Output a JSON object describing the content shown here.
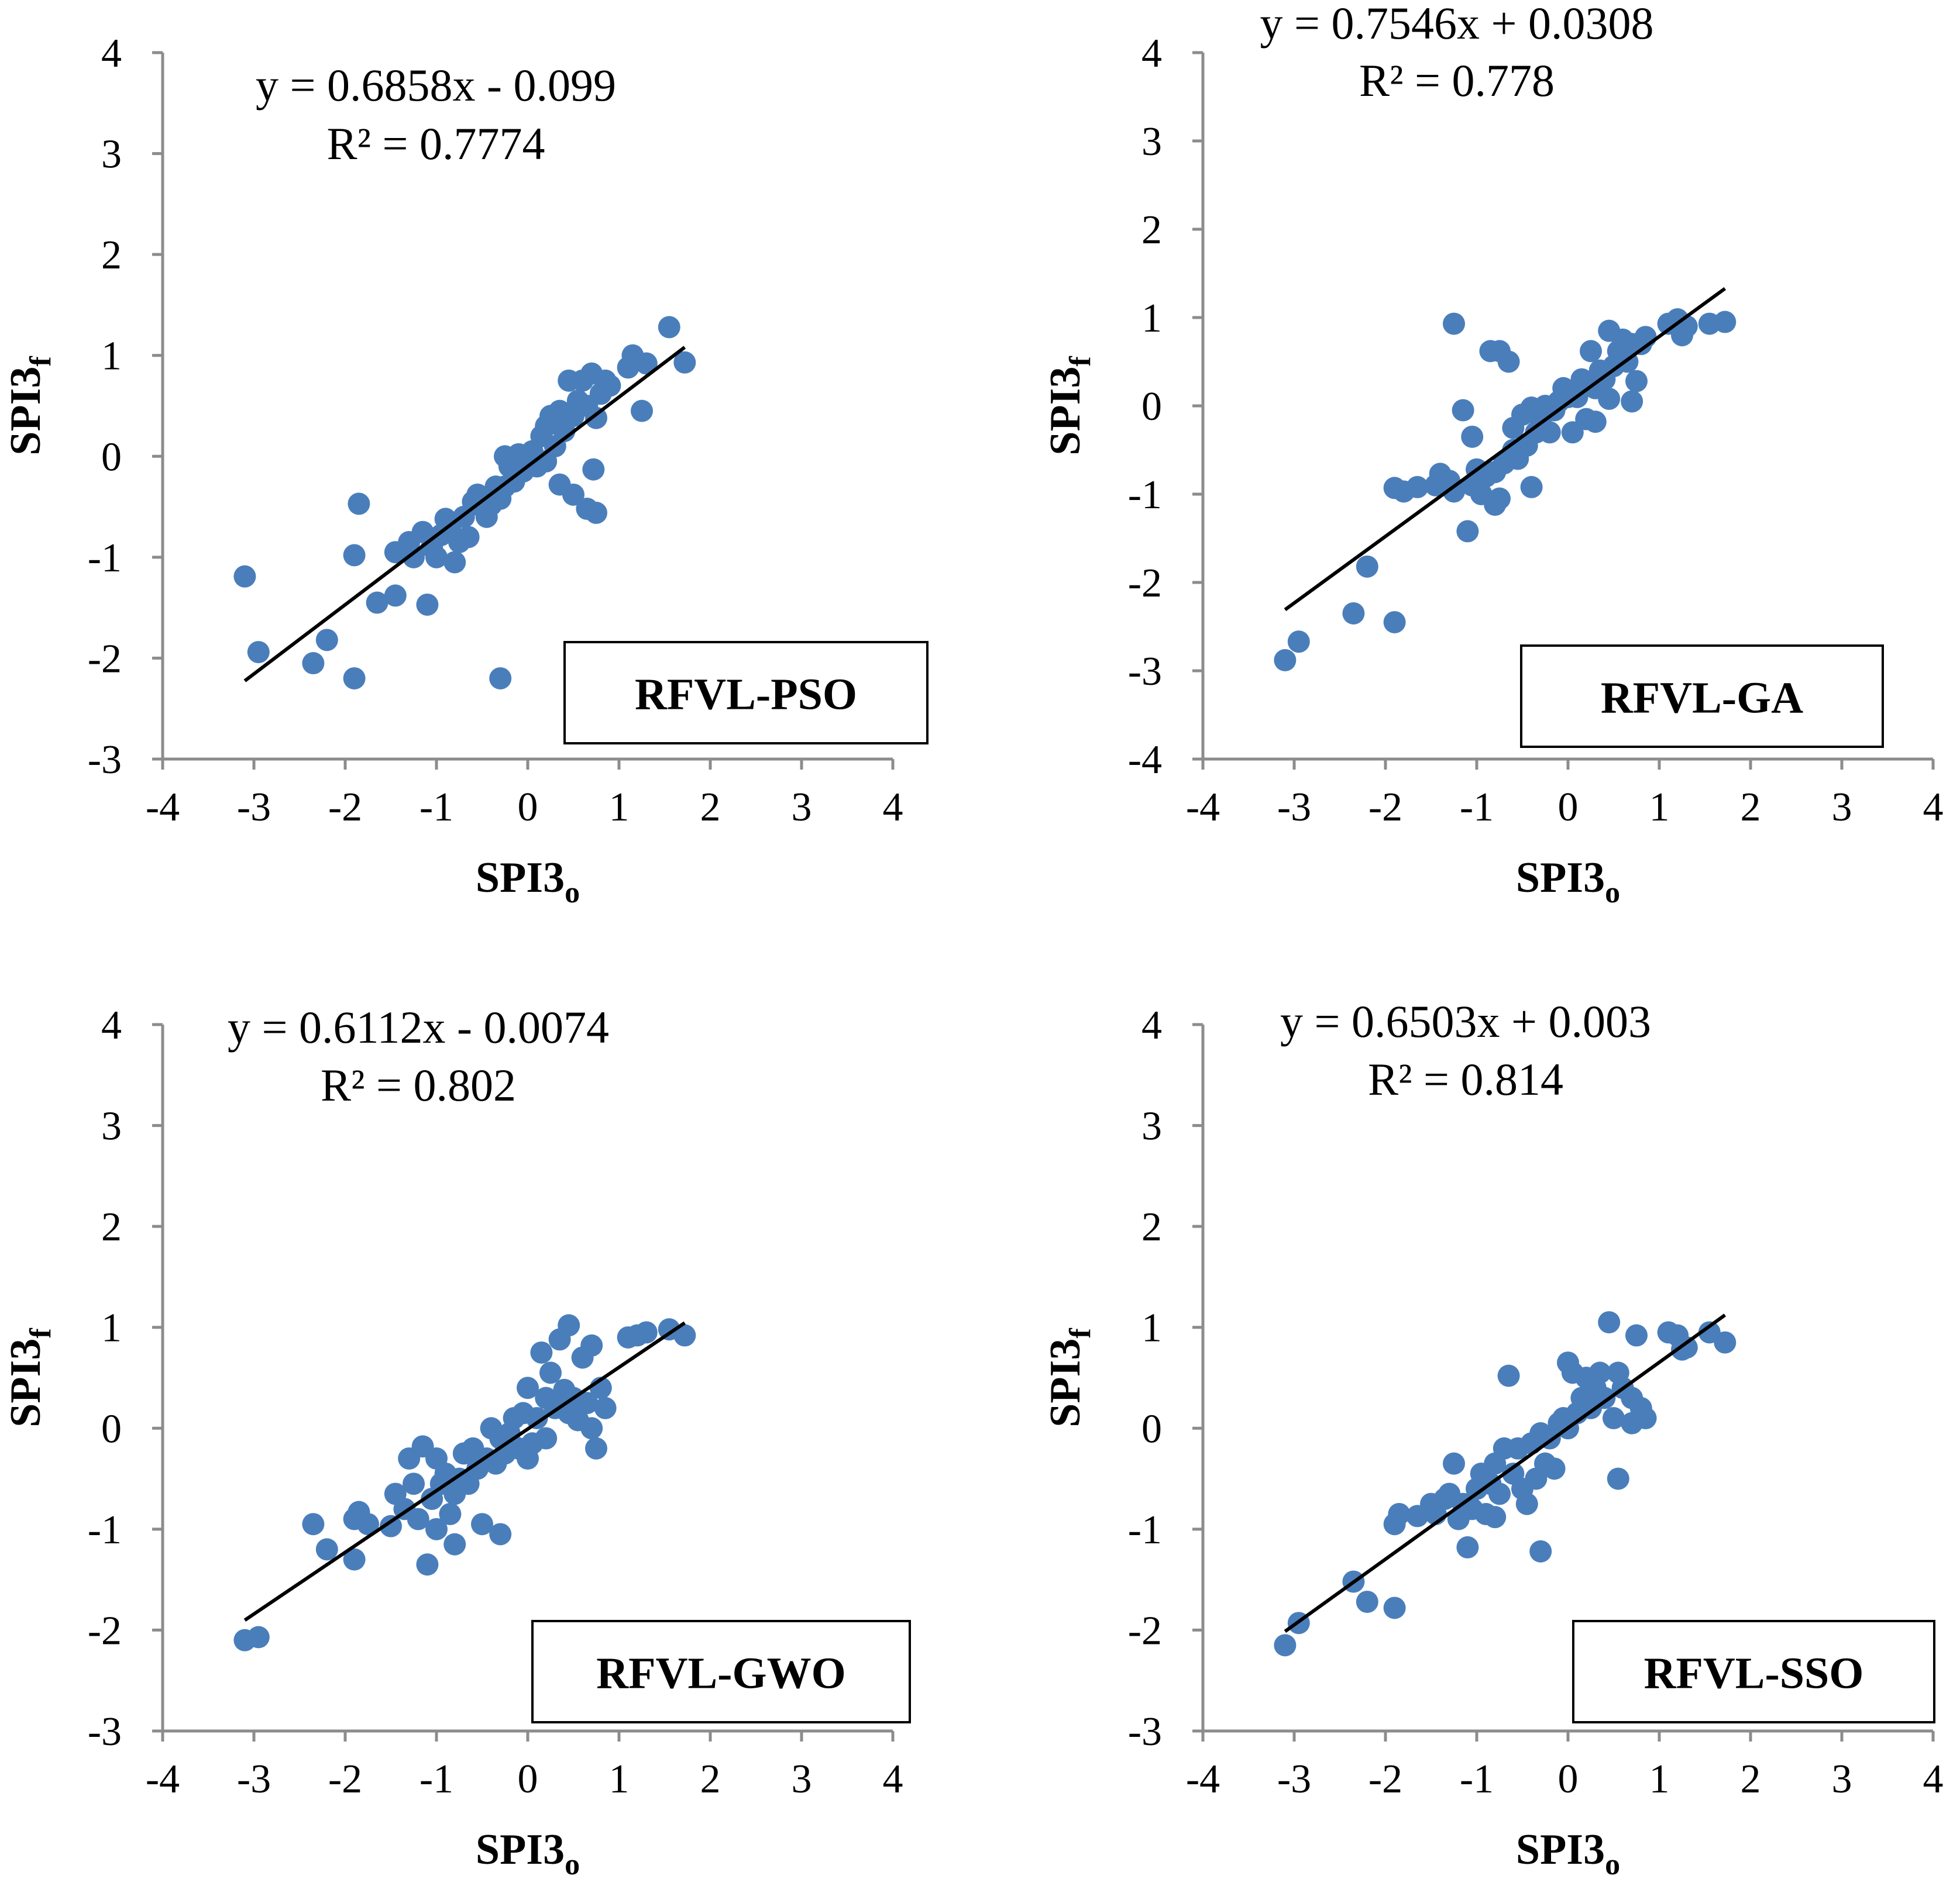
{
  "chart_data": [
    {
      "type": "scatter",
      "model_label": "RFVL-PSO",
      "equation": "y = 0.6858x - 0.099",
      "r2": "R² = 0.7774",
      "xlabel": {
        "base": "SPI3",
        "sub": "o"
      },
      "ylabel": {
        "base": "SPI3",
        "sub": "f"
      },
      "xlim": [
        -4,
        4
      ],
      "ylim": [
        -3,
        4
      ],
      "xticks": [
        -4,
        -3,
        -2,
        -1,
        0,
        1,
        2,
        3,
        4
      ],
      "yticks": [
        -3,
        -2,
        -1,
        0,
        1,
        2,
        3,
        4
      ],
      "trend": {
        "slope": 0.6858,
        "intercept": -0.099,
        "x": [
          -3.1,
          1.72
        ]
      },
      "marker_color": "#4a7ebb",
      "points": [
        [
          -3.1,
          -1.19
        ],
        [
          -2.95,
          -1.94
        ],
        [
          -2.35,
          -2.05
        ],
        [
          -2.2,
          -1.82
        ],
        [
          -1.9,
          -2.2
        ],
        [
          -1.9,
          -0.98
        ],
        [
          -1.85,
          -0.47
        ],
        [
          -1.65,
          -1.45
        ],
        [
          -1.45,
          -1.38
        ],
        [
          -1.45,
          -0.95
        ],
        [
          -1.3,
          -0.85
        ],
        [
          -1.25,
          -1.0
        ],
        [
          -1.15,
          -0.75
        ],
        [
          -1.1,
          -1.47
        ],
        [
          -1.05,
          -0.9
        ],
        [
          -1.0,
          -1.0
        ],
        [
          -0.95,
          -0.78
        ],
        [
          -0.9,
          -0.62
        ],
        [
          -0.85,
          -0.7
        ],
        [
          -0.8,
          -1.05
        ],
        [
          -0.75,
          -0.85
        ],
        [
          -0.7,
          -0.6
        ],
        [
          -0.65,
          -0.8
        ],
        [
          -0.6,
          -0.45
        ],
        [
          -0.55,
          -0.38
        ],
        [
          -0.5,
          -0.5
        ],
        [
          -0.45,
          -0.6
        ],
        [
          -0.4,
          -0.48
        ],
        [
          -0.35,
          -0.3
        ],
        [
          -0.3,
          -0.42
        ],
        [
          -0.3,
          -2.2
        ],
        [
          -0.25,
          -0.3
        ],
        [
          -0.25,
          0.0
        ],
        [
          -0.2,
          -0.1
        ],
        [
          -0.15,
          -0.25
        ],
        [
          -0.1,
          0.02
        ],
        [
          -0.05,
          -0.15
        ],
        [
          0.0,
          -0.05
        ],
        [
          0.05,
          0.05
        ],
        [
          0.1,
          -0.1
        ],
        [
          0.15,
          0.2
        ],
        [
          0.2,
          0.3
        ],
        [
          0.2,
          -0.05
        ],
        [
          0.25,
          0.4
        ],
        [
          0.3,
          0.1
        ],
        [
          0.35,
          0.45
        ],
        [
          0.35,
          -0.28
        ],
        [
          0.4,
          0.25
        ],
        [
          0.45,
          0.75
        ],
        [
          0.5,
          -0.38
        ],
        [
          0.5,
          0.4
        ],
        [
          0.55,
          0.55
        ],
        [
          0.6,
          0.75
        ],
        [
          0.65,
          0.5
        ],
        [
          0.65,
          -0.52
        ],
        [
          0.7,
          0.82
        ],
        [
          0.72,
          -0.13
        ],
        [
          0.75,
          0.38
        ],
        [
          0.75,
          -0.56
        ],
        [
          0.8,
          0.62
        ],
        [
          0.85,
          0.75
        ],
        [
          0.9,
          0.7
        ],
        [
          1.1,
          0.88
        ],
        [
          1.15,
          1.0
        ],
        [
          1.25,
          0.45
        ],
        [
          1.3,
          0.92
        ],
        [
          1.55,
          1.28
        ],
        [
          1.72,
          0.93
        ]
      ]
    },
    {
      "type": "scatter",
      "model_label": "RFVL-GA",
      "equation": "y = 0.7546x + 0.0308",
      "r2": "R² = 0.778",
      "xlabel": {
        "base": "SPI3",
        "sub": "o"
      },
      "ylabel": {
        "base": "SPI3",
        "sub": "f"
      },
      "xlim": [
        -4,
        4
      ],
      "ylim": [
        -4,
        4
      ],
      "xticks": [
        -4,
        -3,
        -2,
        -1,
        0,
        1,
        2,
        3,
        4
      ],
      "yticks": [
        -4,
        -3,
        -2,
        -1,
        0,
        1,
        2,
        3,
        4
      ],
      "trend": {
        "slope": 0.7546,
        "intercept": 0.0308,
        "x": [
          -3.1,
          1.72
        ]
      },
      "marker_color": "#4a7ebb",
      "points": [
        [
          -3.1,
          -2.88
        ],
        [
          -2.95,
          -2.67
        ],
        [
          -2.35,
          -2.35
        ],
        [
          -2.2,
          -1.82
        ],
        [
          -1.9,
          -2.45
        ],
        [
          -1.9,
          -0.93
        ],
        [
          -1.8,
          -0.97
        ],
        [
          -1.65,
          -0.92
        ],
        [
          -1.45,
          -0.9
        ],
        [
          -1.4,
          -0.77
        ],
        [
          -1.3,
          -0.85
        ],
        [
          -1.25,
          0.93
        ],
        [
          -1.25,
          -0.97
        ],
        [
          -1.15,
          -0.05
        ],
        [
          -1.1,
          -1.42
        ],
        [
          -1.05,
          -0.9
        ],
        [
          -1.05,
          -0.35
        ],
        [
          -1.0,
          -0.72
        ],
        [
          -0.95,
          -1.0
        ],
        [
          -0.9,
          -0.8
        ],
        [
          -0.85,
          0.62
        ],
        [
          -0.8,
          -1.12
        ],
        [
          -0.8,
          -0.75
        ],
        [
          -0.75,
          0.62
        ],
        [
          -0.75,
          -1.05
        ],
        [
          -0.7,
          -0.65
        ],
        [
          -0.65,
          0.5
        ],
        [
          -0.6,
          -0.5
        ],
        [
          -0.6,
          -0.25
        ],
        [
          -0.55,
          -0.6
        ],
        [
          -0.5,
          -0.1
        ],
        [
          -0.45,
          -0.45
        ],
        [
          -0.4,
          -0.92
        ],
        [
          -0.4,
          -0.02
        ],
        [
          -0.35,
          -0.3
        ],
        [
          -0.3,
          -0.15
        ],
        [
          -0.25,
          0.0
        ],
        [
          -0.2,
          -0.3
        ],
        [
          -0.15,
          -0.05
        ],
        [
          -0.1,
          0.05
        ],
        [
          -0.05,
          0.2
        ],
        [
          0.0,
          0.1
        ],
        [
          0.05,
          -0.3
        ],
        [
          0.1,
          0.1
        ],
        [
          0.15,
          0.3
        ],
        [
          0.2,
          -0.15
        ],
        [
          0.25,
          0.62
        ],
        [
          0.3,
          0.2
        ],
        [
          0.3,
          -0.18
        ],
        [
          0.35,
          0.4
        ],
        [
          0.4,
          0.3
        ],
        [
          0.45,
          0.85
        ],
        [
          0.45,
          0.08
        ],
        [
          0.5,
          0.45
        ],
        [
          0.55,
          0.62
        ],
        [
          0.6,
          0.75
        ],
        [
          0.65,
          0.5
        ],
        [
          0.7,
          0.05
        ],
        [
          0.7,
          0.7
        ],
        [
          0.75,
          0.28
        ],
        [
          0.8,
          0.7
        ],
        [
          0.85,
          0.78
        ],
        [
          1.1,
          0.93
        ],
        [
          1.2,
          0.98
        ],
        [
          1.25,
          0.8
        ],
        [
          1.3,
          0.9
        ],
        [
          1.55,
          0.93
        ],
        [
          1.72,
          0.95
        ]
      ]
    },
    {
      "type": "scatter",
      "model_label": "RFVL-GWO",
      "equation": "y = 0.6112x - 0.0074",
      "r2": "R² = 0.802",
      "xlabel": {
        "base": "SPI3",
        "sub": "o"
      },
      "ylabel": {
        "base": "SPI3",
        "sub": "f"
      },
      "xlim": [
        -4,
        4
      ],
      "ylim": [
        -3,
        4
      ],
      "xticks": [
        -4,
        -3,
        -2,
        -1,
        0,
        1,
        2,
        3,
        4
      ],
      "yticks": [
        -3,
        -2,
        -1,
        0,
        1,
        2,
        3,
        4
      ],
      "trend": {
        "slope": 0.6112,
        "intercept": -0.0074,
        "x": [
          -3.1,
          1.72
        ]
      },
      "marker_color": "#4a7ebb",
      "points": [
        [
          -3.1,
          -2.1
        ],
        [
          -2.95,
          -2.07
        ],
        [
          -2.35,
          -0.95
        ],
        [
          -2.2,
          -1.2
        ],
        [
          -1.9,
          -1.3
        ],
        [
          -1.9,
          -0.9
        ],
        [
          -1.85,
          -0.83
        ],
        [
          -1.75,
          -0.95
        ],
        [
          -1.5,
          -0.97
        ],
        [
          -1.45,
          -0.65
        ],
        [
          -1.35,
          -0.8
        ],
        [
          -1.3,
          -0.3
        ],
        [
          -1.25,
          -0.55
        ],
        [
          -1.2,
          -0.9
        ],
        [
          -1.15,
          -0.18
        ],
        [
          -1.1,
          -1.35
        ],
        [
          -1.05,
          -0.7
        ],
        [
          -1.0,
          -1.0
        ],
        [
          -1.0,
          -0.3
        ],
        [
          -0.95,
          -0.55
        ],
        [
          -0.9,
          -0.45
        ],
        [
          -0.85,
          -0.85
        ],
        [
          -0.8,
          -1.15
        ],
        [
          -0.8,
          -0.65
        ],
        [
          -0.75,
          -0.5
        ],
        [
          -0.7,
          -0.25
        ],
        [
          -0.65,
          -0.55
        ],
        [
          -0.6,
          -0.2
        ],
        [
          -0.55,
          -0.4
        ],
        [
          -0.5,
          -0.95
        ],
        [
          -0.45,
          -0.3
        ],
        [
          -0.4,
          0.0
        ],
        [
          -0.35,
          -0.35
        ],
        [
          -0.3,
          -1.05
        ],
        [
          -0.3,
          -0.1
        ],
        [
          -0.25,
          -0.25
        ],
        [
          -0.2,
          -0.05
        ],
        [
          -0.15,
          0.1
        ],
        [
          -0.1,
          -0.2
        ],
        [
          -0.05,
          0.15
        ],
        [
          0.0,
          -0.3
        ],
        [
          0.0,
          0.4
        ],
        [
          0.05,
          -0.15
        ],
        [
          0.1,
          0.1
        ],
        [
          0.15,
          0.75
        ],
        [
          0.2,
          -0.1
        ],
        [
          0.2,
          0.3
        ],
        [
          0.25,
          0.55
        ],
        [
          0.3,
          0.2
        ],
        [
          0.35,
          0.88
        ],
        [
          0.4,
          0.38
        ],
        [
          0.45,
          1.02
        ],
        [
          0.45,
          0.15
        ],
        [
          0.5,
          0.3
        ],
        [
          0.55,
          0.08
        ],
        [
          0.6,
          0.7
        ],
        [
          0.65,
          0.25
        ],
        [
          0.7,
          0.0
        ],
        [
          0.7,
          0.82
        ],
        [
          0.75,
          -0.2
        ],
        [
          0.8,
          0.4
        ],
        [
          0.85,
          0.2
        ],
        [
          1.1,
          0.9
        ],
        [
          1.2,
          0.92
        ],
        [
          1.3,
          0.95
        ],
        [
          1.55,
          0.98
        ],
        [
          1.72,
          0.92
        ]
      ]
    },
    {
      "type": "scatter",
      "model_label": "RFVL-SSO",
      "equation": "y = 0.6503x + 0.003",
      "r2": "R² = 0.814",
      "xlabel": {
        "base": "SPI3",
        "sub": "o"
      },
      "ylabel": {
        "base": "SPI3",
        "sub": "f"
      },
      "xlim": [
        -4,
        4
      ],
      "ylim": [
        -3,
        4
      ],
      "xticks": [
        -4,
        -3,
        -2,
        -1,
        0,
        1,
        2,
        3,
        4
      ],
      "yticks": [
        -3,
        -2,
        -1,
        0,
        1,
        2,
        3,
        4
      ],
      "trend": {
        "slope": 0.6503,
        "intercept": 0.003,
        "x": [
          -3.1,
          1.72
        ]
      },
      "marker_color": "#4a7ebb",
      "points": [
        [
          -3.1,
          -2.15
        ],
        [
          -2.95,
          -1.93
        ],
        [
          -2.35,
          -1.52
        ],
        [
          -2.2,
          -1.72
        ],
        [
          -1.9,
          -1.78
        ],
        [
          -1.9,
          -0.95
        ],
        [
          -1.85,
          -0.85
        ],
        [
          -1.65,
          -0.87
        ],
        [
          -1.5,
          -0.75
        ],
        [
          -1.45,
          -0.85
        ],
        [
          -1.35,
          -0.7
        ],
        [
          -1.3,
          -0.65
        ],
        [
          -1.25,
          -0.35
        ],
        [
          -1.2,
          -0.9
        ],
        [
          -1.15,
          -0.75
        ],
        [
          -1.1,
          -1.18
        ],
        [
          -1.05,
          -0.8
        ],
        [
          -1.0,
          -0.6
        ],
        [
          -0.95,
          -0.45
        ],
        [
          -0.9,
          -0.85
        ],
        [
          -0.85,
          -0.55
        ],
        [
          -0.8,
          -0.35
        ],
        [
          -0.8,
          -0.88
        ],
        [
          -0.75,
          -0.65
        ],
        [
          -0.7,
          -0.2
        ],
        [
          -0.65,
          0.52
        ],
        [
          -0.6,
          -0.45
        ],
        [
          -0.55,
          -0.2
        ],
        [
          -0.5,
          -0.6
        ],
        [
          -0.45,
          -0.75
        ],
        [
          -0.4,
          -0.15
        ],
        [
          -0.35,
          -0.5
        ],
        [
          -0.3,
          -1.22
        ],
        [
          -0.3,
          -0.05
        ],
        [
          -0.25,
          -0.35
        ],
        [
          -0.2,
          -0.1
        ],
        [
          -0.15,
          -0.4
        ],
        [
          -0.1,
          0.05
        ],
        [
          -0.05,
          0.1
        ],
        [
          0.0,
          0.65
        ],
        [
          0.0,
          0.0
        ],
        [
          0.05,
          0.55
        ],
        [
          0.1,
          0.15
        ],
        [
          0.15,
          0.3
        ],
        [
          0.2,
          0.5
        ],
        [
          0.25,
          0.2
        ],
        [
          0.3,
          0.4
        ],
        [
          0.35,
          0.55
        ],
        [
          0.4,
          0.3
        ],
        [
          0.45,
          1.05
        ],
        [
          0.5,
          0.1
        ],
        [
          0.55,
          -0.5
        ],
        [
          0.55,
          0.55
        ],
        [
          0.6,
          0.4
        ],
        [
          0.7,
          0.05
        ],
        [
          0.7,
          0.3
        ],
        [
          0.75,
          0.92
        ],
        [
          0.8,
          0.2
        ],
        [
          0.85,
          0.1
        ],
        [
          1.1,
          0.95
        ],
        [
          1.2,
          0.92
        ],
        [
          1.25,
          0.78
        ],
        [
          1.3,
          0.8
        ],
        [
          1.55,
          0.95
        ],
        [
          1.72,
          0.85
        ]
      ]
    }
  ]
}
